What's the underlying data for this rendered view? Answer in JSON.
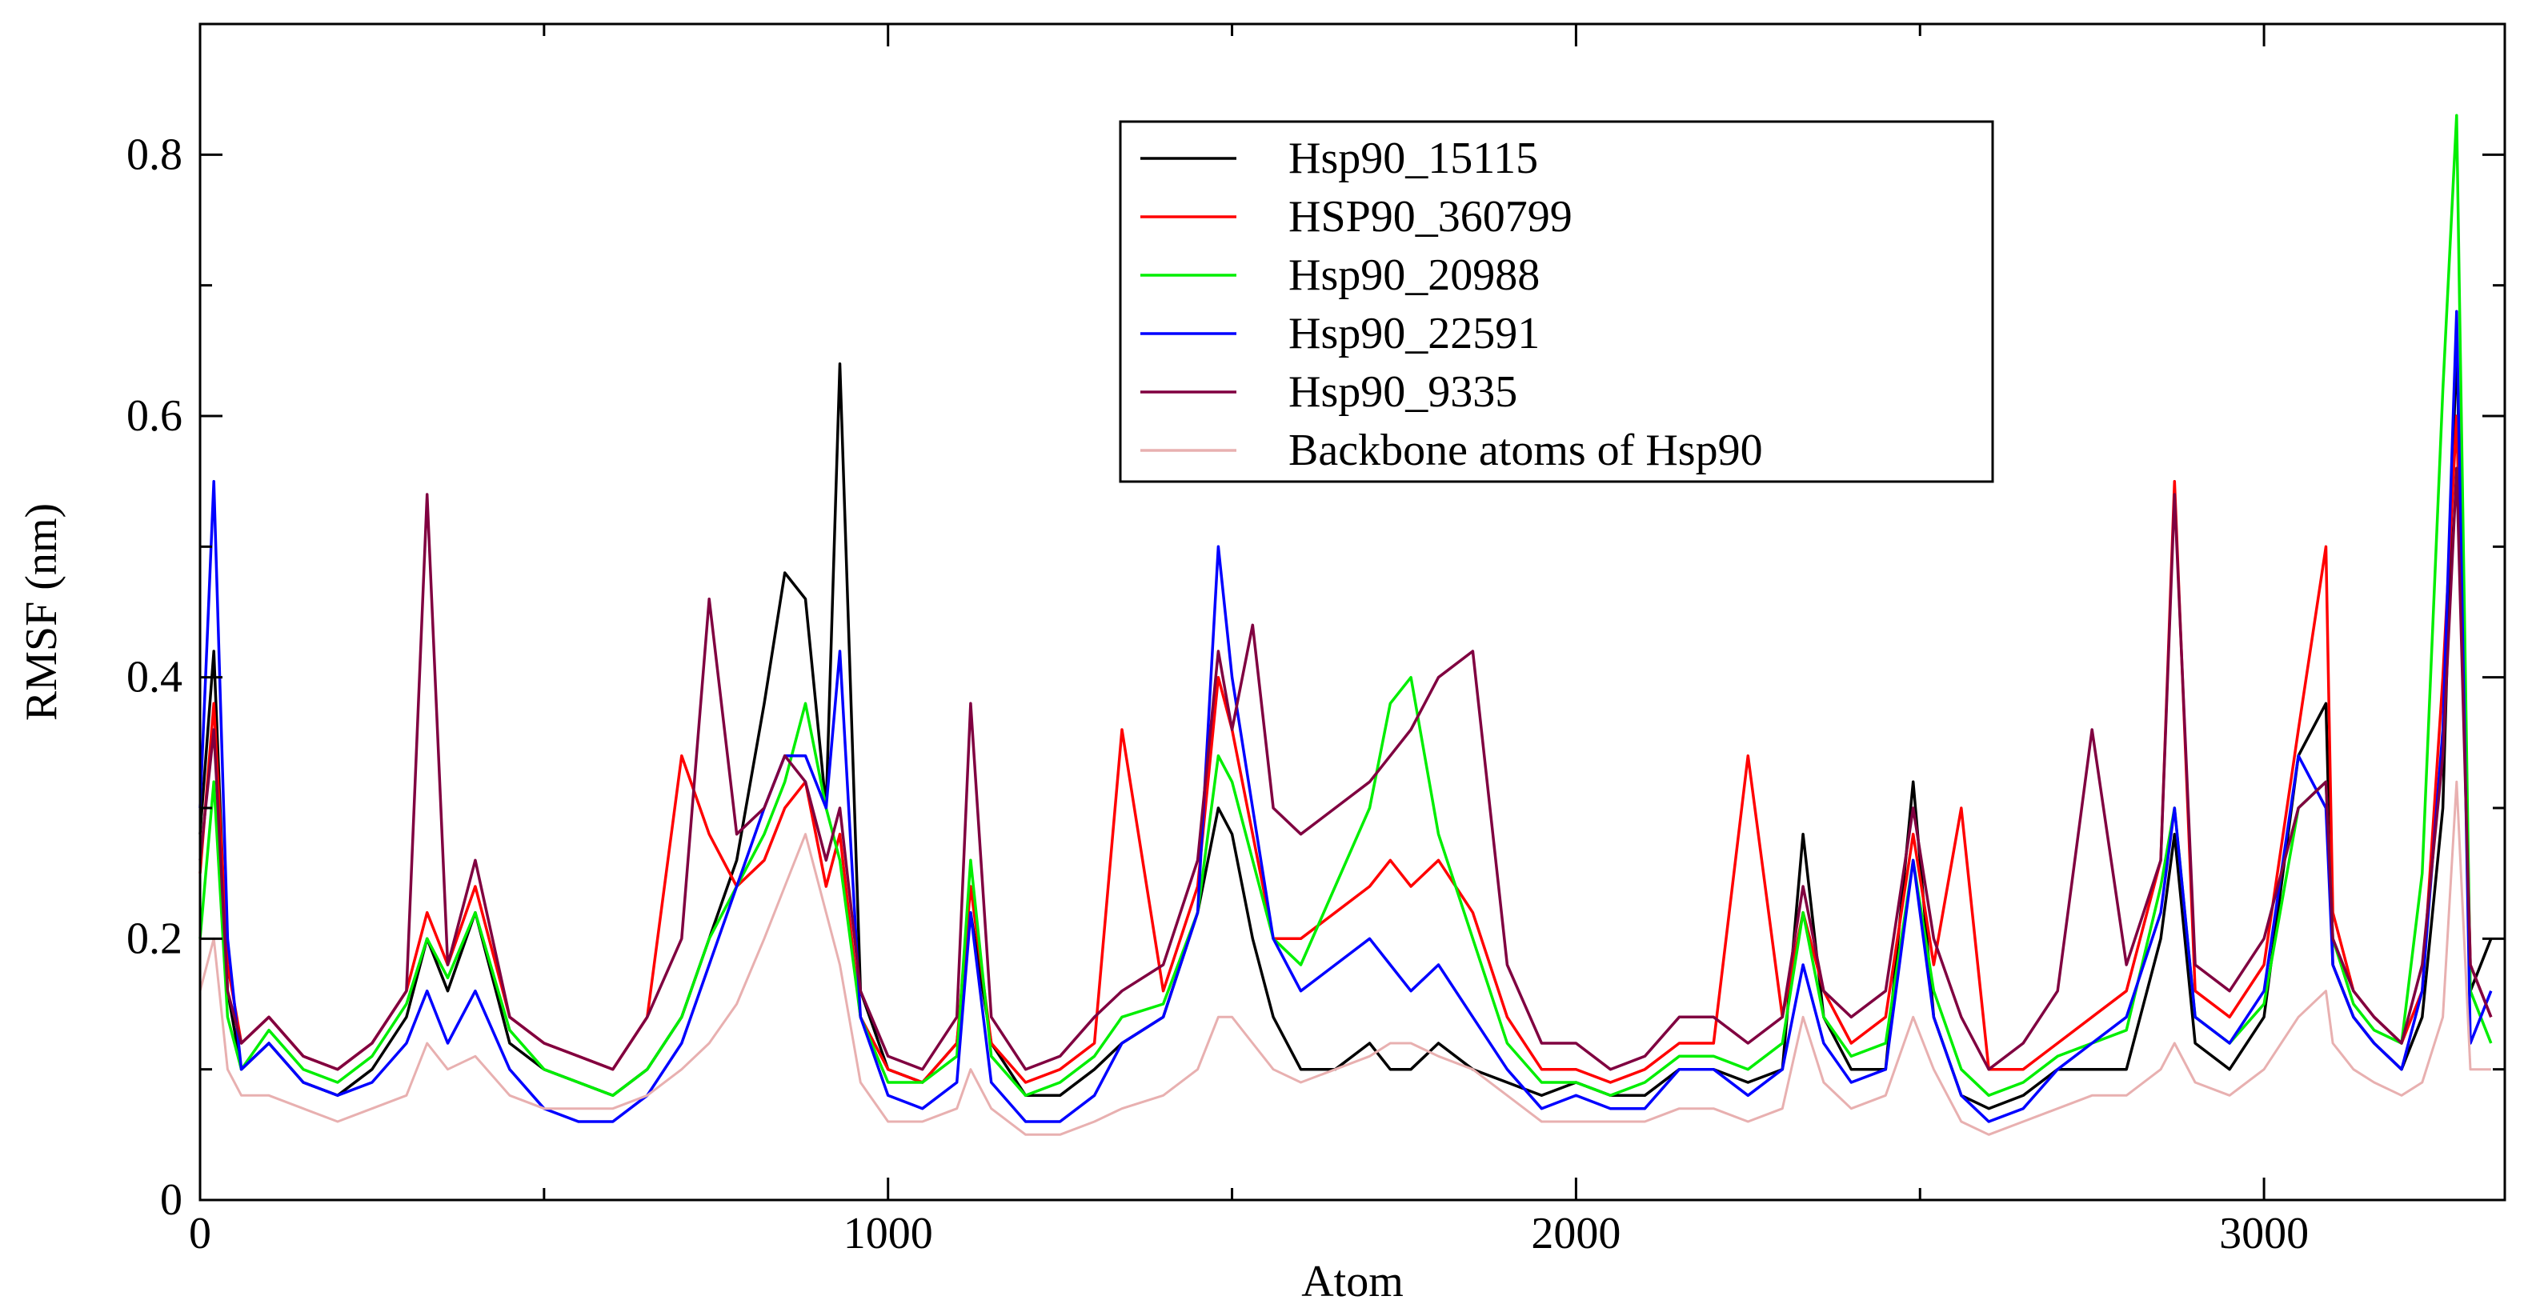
{
  "chart_data": {
    "type": "line",
    "title": "",
    "xlabel": "Atom",
    "ylabel": "RMSF (nm)",
    "xlim": [
      0,
      3350
    ],
    "ylim": [
      0,
      0.9
    ],
    "x_ticks": [
      {
        "value": 0,
        "label": "0"
      },
      {
        "value": 1000,
        "label": "1000"
      },
      {
        "value": 2000,
        "label": "2000"
      },
      {
        "value": 3000,
        "label": "3000"
      }
    ],
    "x_minor_ticks": [
      500,
      1500,
      2500
    ],
    "y_ticks": [
      {
        "value": 0,
        "label": "0"
      },
      {
        "value": 0.2,
        "label": "0.2"
      },
      {
        "value": 0.4,
        "label": "0.4"
      },
      {
        "value": 0.6,
        "label": "0.6"
      },
      {
        "value": 0.8,
        "label": "0.8"
      }
    ],
    "y_minor_ticks": [
      0.1,
      0.3,
      0.5,
      0.7
    ],
    "legend_position": "top-center",
    "x": [
      0,
      20,
      40,
      60,
      100,
      150,
      200,
      250,
      300,
      330,
      360,
      400,
      450,
      500,
      550,
      600,
      650,
      700,
      740,
      780,
      820,
      850,
      880,
      910,
      930,
      960,
      1000,
      1050,
      1100,
      1120,
      1150,
      1200,
      1250,
      1300,
      1340,
      1400,
      1450,
      1480,
      1500,
      1530,
      1560,
      1600,
      1650,
      1700,
      1730,
      1760,
      1800,
      1850,
      1900,
      1950,
      2000,
      2050,
      2100,
      2150,
      2200,
      2250,
      2300,
      2330,
      2360,
      2400,
      2450,
      2490,
      2520,
      2560,
      2600,
      2650,
      2700,
      2750,
      2800,
      2850,
      2870,
      2900,
      2950,
      3000,
      3050,
      3090,
      3100,
      3130,
      3160,
      3200,
      3230,
      3260,
      3280,
      3300,
      3330
    ],
    "series": [
      {
        "name": "Hsp90_15115",
        "color": "#000000",
        "values": [
          0.28,
          0.42,
          0.16,
          0.1,
          0.12,
          0.09,
          0.08,
          0.1,
          0.14,
          0.2,
          0.16,
          0.22,
          0.12,
          0.1,
          0.09,
          0.08,
          0.1,
          0.14,
          0.2,
          0.26,
          0.38,
          0.48,
          0.46,
          0.3,
          0.64,
          0.16,
          0.1,
          0.09,
          0.12,
          0.22,
          0.12,
          0.08,
          0.08,
          0.1,
          0.12,
          0.14,
          0.22,
          0.3,
          0.28,
          0.2,
          0.14,
          0.1,
          0.1,
          0.12,
          0.1,
          0.1,
          0.12,
          0.1,
          0.09,
          0.08,
          0.09,
          0.08,
          0.08,
          0.1,
          0.1,
          0.09,
          0.1,
          0.28,
          0.14,
          0.1,
          0.1,
          0.32,
          0.14,
          0.08,
          0.07,
          0.08,
          0.1,
          0.1,
          0.1,
          0.2,
          0.28,
          0.12,
          0.1,
          0.14,
          0.34,
          0.38,
          0.18,
          0.14,
          0.12,
          0.1,
          0.14,
          0.3,
          0.66,
          0.16,
          0.2
        ]
      },
      {
        "name": "HSP90_360799",
        "color": "#ff0000",
        "values": [
          0.25,
          0.38,
          0.18,
          0.12,
          0.14,
          0.11,
          0.1,
          0.12,
          0.16,
          0.22,
          0.18,
          0.24,
          0.14,
          0.12,
          0.11,
          0.1,
          0.14,
          0.34,
          0.28,
          0.24,
          0.26,
          0.3,
          0.32,
          0.24,
          0.28,
          0.14,
          0.1,
          0.09,
          0.12,
          0.24,
          0.12,
          0.09,
          0.1,
          0.12,
          0.36,
          0.16,
          0.24,
          0.4,
          0.36,
          0.28,
          0.2,
          0.2,
          0.22,
          0.24,
          0.26,
          0.24,
          0.26,
          0.22,
          0.14,
          0.1,
          0.1,
          0.09,
          0.1,
          0.12,
          0.12,
          0.34,
          0.14,
          0.22,
          0.16,
          0.12,
          0.14,
          0.28,
          0.18,
          0.3,
          0.1,
          0.1,
          0.12,
          0.14,
          0.16,
          0.26,
          0.55,
          0.16,
          0.14,
          0.18,
          0.36,
          0.5,
          0.22,
          0.16,
          0.14,
          0.12,
          0.16,
          0.4,
          0.6,
          0.18,
          0.14
        ]
      },
      {
        "name": "Hsp90_20988",
        "color": "#00ee00",
        "values": [
          0.2,
          0.32,
          0.14,
          0.1,
          0.13,
          0.1,
          0.09,
          0.11,
          0.15,
          0.2,
          0.17,
          0.22,
          0.13,
          0.1,
          0.09,
          0.08,
          0.1,
          0.14,
          0.2,
          0.24,
          0.28,
          0.32,
          0.38,
          0.3,
          0.26,
          0.14,
          0.09,
          0.09,
          0.11,
          0.26,
          0.11,
          0.08,
          0.09,
          0.11,
          0.14,
          0.15,
          0.22,
          0.34,
          0.32,
          0.26,
          0.2,
          0.18,
          0.24,
          0.3,
          0.38,
          0.4,
          0.28,
          0.2,
          0.12,
          0.09,
          0.09,
          0.08,
          0.09,
          0.11,
          0.11,
          0.1,
          0.12,
          0.22,
          0.14,
          0.11,
          0.12,
          0.26,
          0.16,
          0.1,
          0.08,
          0.09,
          0.11,
          0.12,
          0.13,
          0.24,
          0.3,
          0.14,
          0.12,
          0.15,
          0.3,
          0.32,
          0.2,
          0.15,
          0.13,
          0.12,
          0.25,
          0.62,
          0.83,
          0.16,
          0.12
        ]
      },
      {
        "name": "Hsp90_22591",
        "color": "#0000ff",
        "values": [
          0.3,
          0.55,
          0.2,
          0.1,
          0.12,
          0.09,
          0.08,
          0.09,
          0.12,
          0.16,
          0.12,
          0.16,
          0.1,
          0.07,
          0.06,
          0.06,
          0.08,
          0.12,
          0.18,
          0.24,
          0.3,
          0.34,
          0.34,
          0.3,
          0.42,
          0.14,
          0.08,
          0.07,
          0.09,
          0.22,
          0.09,
          0.06,
          0.06,
          0.08,
          0.12,
          0.14,
          0.22,
          0.5,
          0.4,
          0.3,
          0.2,
          0.16,
          0.18,
          0.2,
          0.18,
          0.16,
          0.18,
          0.14,
          0.1,
          0.07,
          0.08,
          0.07,
          0.07,
          0.1,
          0.1,
          0.08,
          0.1,
          0.18,
          0.12,
          0.09,
          0.1,
          0.26,
          0.14,
          0.08,
          0.06,
          0.07,
          0.1,
          0.12,
          0.14,
          0.22,
          0.3,
          0.14,
          0.12,
          0.16,
          0.34,
          0.3,
          0.18,
          0.14,
          0.12,
          0.1,
          0.16,
          0.36,
          0.68,
          0.12,
          0.16
        ]
      },
      {
        "name": "Hsp90_9335",
        "color": "#800040",
        "values": [
          0.26,
          0.36,
          0.16,
          0.12,
          0.14,
          0.11,
          0.1,
          0.12,
          0.16,
          0.54,
          0.18,
          0.26,
          0.14,
          0.12,
          0.11,
          0.1,
          0.14,
          0.2,
          0.46,
          0.28,
          0.3,
          0.34,
          0.32,
          0.26,
          0.3,
          0.16,
          0.11,
          0.1,
          0.14,
          0.38,
          0.14,
          0.1,
          0.11,
          0.14,
          0.16,
          0.18,
          0.26,
          0.42,
          0.36,
          0.44,
          0.3,
          0.28,
          0.3,
          0.32,
          0.34,
          0.36,
          0.4,
          0.42,
          0.18,
          0.12,
          0.12,
          0.1,
          0.11,
          0.14,
          0.14,
          0.12,
          0.14,
          0.24,
          0.16,
          0.14,
          0.16,
          0.3,
          0.2,
          0.14,
          0.1,
          0.12,
          0.16,
          0.36,
          0.18,
          0.26,
          0.54,
          0.18,
          0.16,
          0.2,
          0.3,
          0.32,
          0.2,
          0.16,
          0.14,
          0.12,
          0.18,
          0.34,
          0.56,
          0.18,
          0.14
        ]
      },
      {
        "name": "Backbone atoms of Hsp90",
        "color": "#e8b0b0",
        "values": [
          0.16,
          0.2,
          0.1,
          0.08,
          0.08,
          0.07,
          0.06,
          0.07,
          0.08,
          0.12,
          0.1,
          0.11,
          0.08,
          0.07,
          0.07,
          0.07,
          0.08,
          0.1,
          0.12,
          0.15,
          0.2,
          0.24,
          0.28,
          0.22,
          0.18,
          0.09,
          0.06,
          0.06,
          0.07,
          0.1,
          0.07,
          0.05,
          0.05,
          0.06,
          0.07,
          0.08,
          0.1,
          0.14,
          0.14,
          0.12,
          0.1,
          0.09,
          0.1,
          0.11,
          0.12,
          0.12,
          0.11,
          0.1,
          0.08,
          0.06,
          0.06,
          0.06,
          0.06,
          0.07,
          0.07,
          0.06,
          0.07,
          0.14,
          0.09,
          0.07,
          0.08,
          0.14,
          0.1,
          0.06,
          0.05,
          0.06,
          0.07,
          0.08,
          0.08,
          0.1,
          0.12,
          0.09,
          0.08,
          0.1,
          0.14,
          0.16,
          0.12,
          0.1,
          0.09,
          0.08,
          0.09,
          0.14,
          0.32,
          0.1,
          0.1
        ]
      }
    ]
  }
}
